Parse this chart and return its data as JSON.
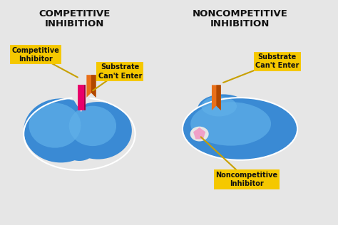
{
  "bg_color": "#e6e6e6",
  "title_left": "COMPETITIVE\nINHIBITION",
  "title_right": "NONCOMPETITIVE\nINHIBITION",
  "label_comp_inhibitor": "Competitive\nInhibitor",
  "label_substrate_cant_enter_left": "Substrate\nCan't Enter",
  "label_substrate_cant_enter_right": "Substrate\nCan't Enter",
  "label_noncomp_inhibitor": "Noncompetitive\nInhibitor",
  "enzyme_color_center": "#3a8ad4",
  "enzyme_color_edge": "#2060a0",
  "enzyme_color_highlight": "#60b0e8",
  "comp_inhibitor_color": "#e8006a",
  "noncomp_inhibitor_color": "#f0a0c8",
  "flag_color_light": "#e8701a",
  "flag_color_dark": "#b04800",
  "label_bg": "#f5c800",
  "text_color": "#111111",
  "title_fontsize": 9.5,
  "label_fontsize": 7.0
}
